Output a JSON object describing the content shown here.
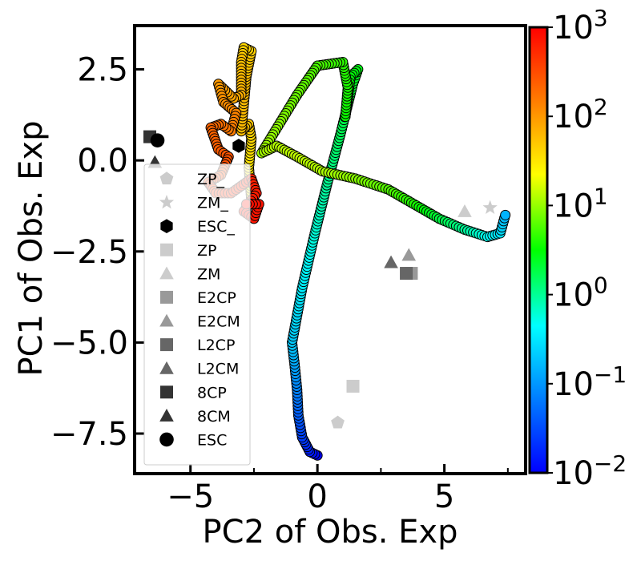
{
  "chart_data": {
    "type": "scatter",
    "xlabel": "PC2 of Obs. Exp",
    "ylabel": "PC1 of Obs. Exp",
    "xlim": [
      -7.2,
      8.2
    ],
    "ylim": [
      -8.6,
      3.7
    ],
    "x_ticks": [
      -5,
      0,
      5
    ],
    "x_tick_labels": [
      "−5",
      "0",
      "5"
    ],
    "y_ticks": [
      2.5,
      0.0,
      -2.5,
      -5.0,
      -7.5
    ],
    "y_tick_labels": [
      "2.5",
      "0.0",
      "−2.5",
      "−5.0",
      "−7.5"
    ],
    "colorbar": {
      "scale": "log",
      "colormap": "jet",
      "range": [
        0.01,
        1000
      ],
      "tick_base": "10",
      "tick_exponents": [
        "3",
        "2",
        "1",
        "0",
        "−1",
        "−2"
      ]
    },
    "legend": {
      "position": "lower-left",
      "entries": [
        {
          "label": "ZP_",
          "marker": "pentagon",
          "color": "#cccccc"
        },
        {
          "label": "ZM_",
          "marker": "star",
          "color": "#cccccc"
        },
        {
          "label": "ESC_",
          "marker": "hexagon",
          "color": "#000000"
        },
        {
          "label": "ZP",
          "marker": "square",
          "color": "#cccccc"
        },
        {
          "label": "ZM",
          "marker": "triangle",
          "color": "#cccccc"
        },
        {
          "label": "E2CP",
          "marker": "square",
          "color": "#999999"
        },
        {
          "label": "E2CM",
          "marker": "triangle",
          "color": "#999999"
        },
        {
          "label": "L2CP",
          "marker": "square",
          "color": "#666666"
        },
        {
          "label": "L2CM",
          "marker": "triangle",
          "color": "#666666"
        },
        {
          "label": "8CP",
          "marker": "square",
          "color": "#333333"
        },
        {
          "label": "8CM",
          "marker": "triangle",
          "color": "#333333"
        },
        {
          "label": "ESC",
          "marker": "circle",
          "color": "#000000"
        }
      ]
    },
    "trajectory": {
      "color_by": "time (log scale)",
      "points": [
        [
          0.0,
          -8.1,
          0.01
        ],
        [
          -0.3,
          -8.0,
          0.015
        ],
        [
          -0.6,
          -7.6,
          0.025
        ],
        [
          -0.75,
          -7.0,
          0.04
        ],
        [
          -0.8,
          -6.3,
          0.07
        ],
        [
          -0.9,
          -5.6,
          0.12
        ],
        [
          -1.0,
          -5.0,
          0.2
        ],
        [
          -0.6,
          -3.5,
          0.35
        ],
        [
          -0.1,
          -2.0,
          0.6
        ],
        [
          0.4,
          -0.6,
          1.0
        ],
        [
          0.9,
          0.7,
          1.6
        ],
        [
          1.4,
          2.1,
          2.3
        ],
        [
          1.6,
          2.5,
          2.7
        ],
        [
          1.3,
          2.3,
          3.0
        ],
        [
          1.1,
          1.2,
          3.4
        ],
        [
          1.2,
          2.0,
          3.8
        ],
        [
          1.0,
          2.7,
          4.4
        ],
        [
          0.0,
          2.6,
          5.5
        ],
        [
          -0.8,
          1.8,
          7.0
        ],
        [
          -1.5,
          1.0,
          9.0
        ],
        [
          -2.2,
          0.2,
          11.0
        ],
        [
          -1.6,
          0.4,
          12.5
        ],
        [
          -0.8,
          0.1,
          14.0
        ],
        [
          0.2,
          -0.3,
          12.0
        ],
        [
          1.5,
          -0.5,
          9.0
        ],
        [
          2.8,
          -0.8,
          6.0
        ],
        [
          3.8,
          -1.2,
          4.0
        ],
        [
          4.8,
          -1.6,
          2.0
        ],
        [
          5.8,
          -1.9,
          1.0
        ],
        [
          6.7,
          -2.1,
          0.5
        ],
        [
          7.2,
          -2.0,
          0.3
        ],
        [
          7.4,
          -1.5,
          0.15
        ]
      ],
      "inner": [
        [
          -2.6,
          -1.1,
          25
        ],
        [
          -2.7,
          -0.2,
          30
        ],
        [
          -2.6,
          0.6,
          40
        ],
        [
          -2.7,
          1.0,
          50
        ],
        [
          -3.0,
          0.8,
          60
        ],
        [
          -2.8,
          2.3,
          60
        ],
        [
          -2.6,
          3.0,
          45
        ],
        [
          -2.9,
          3.1,
          40
        ],
        [
          -3.0,
          2.7,
          55
        ],
        [
          -3.0,
          1.8,
          70
        ],
        [
          -3.3,
          1.7,
          80
        ],
        [
          -3.9,
          2.1,
          95
        ],
        [
          -3.7,
          1.6,
          110
        ],
        [
          -3.2,
          1.3,
          130
        ],
        [
          -3.4,
          0.8,
          150
        ],
        [
          -3.8,
          1.0,
          180
        ],
        [
          -4.2,
          0.9,
          210
        ],
        [
          -3.9,
          0.3,
          240
        ],
        [
          -3.5,
          0.1,
          280
        ],
        [
          -3.8,
          -0.4,
          320
        ],
        [
          -4.3,
          -0.6,
          380
        ],
        [
          -4.0,
          -0.9,
          440
        ],
        [
          -3.4,
          -0.9,
          500
        ],
        [
          -3.0,
          -0.7,
          560
        ],
        [
          -2.6,
          -0.5,
          600
        ],
        [
          -2.4,
          -0.9,
          640
        ],
        [
          -2.9,
          -1.4,
          680
        ],
        [
          -2.5,
          -1.6,
          720
        ],
        [
          -2.3,
          -1.2,
          760
        ],
        [
          -2.8,
          -1.2,
          800
        ]
      ]
    },
    "scatter_markers": [
      {
        "name": "ZP_",
        "x": 0.8,
        "y": -7.2
      },
      {
        "name": "ZM_",
        "x": 6.8,
        "y": -1.3
      },
      {
        "name": "ESC_",
        "x": -3.1,
        "y": 0.4
      },
      {
        "name": "ZP",
        "x": 1.4,
        "y": -6.2
      },
      {
        "name": "ZM",
        "x": 5.8,
        "y": -1.4
      },
      {
        "name": "E2CP",
        "x": 3.7,
        "y": -3.1
      },
      {
        "name": "E2CM",
        "x": 3.6,
        "y": -2.6
      },
      {
        "name": "L2CP",
        "x": 3.5,
        "y": -3.1
      },
      {
        "name": "L2CM",
        "x": 2.9,
        "y": -2.8
      },
      {
        "name": "8CP",
        "x": -6.6,
        "y": 0.65
      },
      {
        "name": "8CM",
        "x": -6.4,
        "y": -0.05
      },
      {
        "name": "ESC",
        "x": -6.3,
        "y": 0.55
      }
    ]
  }
}
